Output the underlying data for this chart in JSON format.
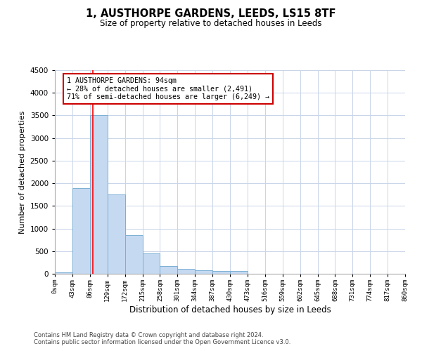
{
  "title_line1": "1, AUSTHORPE GARDENS, LEEDS, LS15 8TF",
  "title_line2": "Size of property relative to detached houses in Leeds",
  "xlabel": "Distribution of detached houses by size in Leeds",
  "ylabel": "Number of detached properties",
  "bar_color": "#c5d9f1",
  "bar_edge_color": "#7bafd4",
  "bin_edges": [
    0,
    43,
    86,
    129,
    172,
    215,
    258,
    301,
    344,
    387,
    430,
    473,
    516,
    559,
    602,
    645,
    688,
    731,
    774,
    817,
    860
  ],
  "bar_values": [
    30,
    1900,
    3500,
    1750,
    850,
    450,
    170,
    110,
    80,
    65,
    55,
    0,
    0,
    0,
    0,
    0,
    0,
    0,
    0,
    0
  ],
  "red_line_x": 94,
  "annotation_text": "1 AUSTHORPE GARDENS: 94sqm\n← 28% of detached houses are smaller (2,491)\n71% of semi-detached houses are larger (6,249) →",
  "annotation_box_color": "#ffffff",
  "annotation_border_color": "#cc0000",
  "ylim": [
    0,
    4500
  ],
  "yticks": [
    0,
    500,
    1000,
    1500,
    2000,
    2500,
    3000,
    3500,
    4000,
    4500
  ],
  "footer_line1": "Contains HM Land Registry data © Crown copyright and database right 2024.",
  "footer_line2": "Contains public sector information licensed under the Open Government Licence v3.0.",
  "background_color": "#ffffff",
  "grid_color": "#c8d4e8",
  "tick_labels": [
    "0sqm",
    "43sqm",
    "86sqm",
    "129sqm",
    "172sqm",
    "215sqm",
    "258sqm",
    "301sqm",
    "344sqm",
    "387sqm",
    "430sqm",
    "473sqm",
    "516sqm",
    "559sqm",
    "602sqm",
    "645sqm",
    "688sqm",
    "731sqm",
    "774sqm",
    "817sqm",
    "860sqm"
  ]
}
